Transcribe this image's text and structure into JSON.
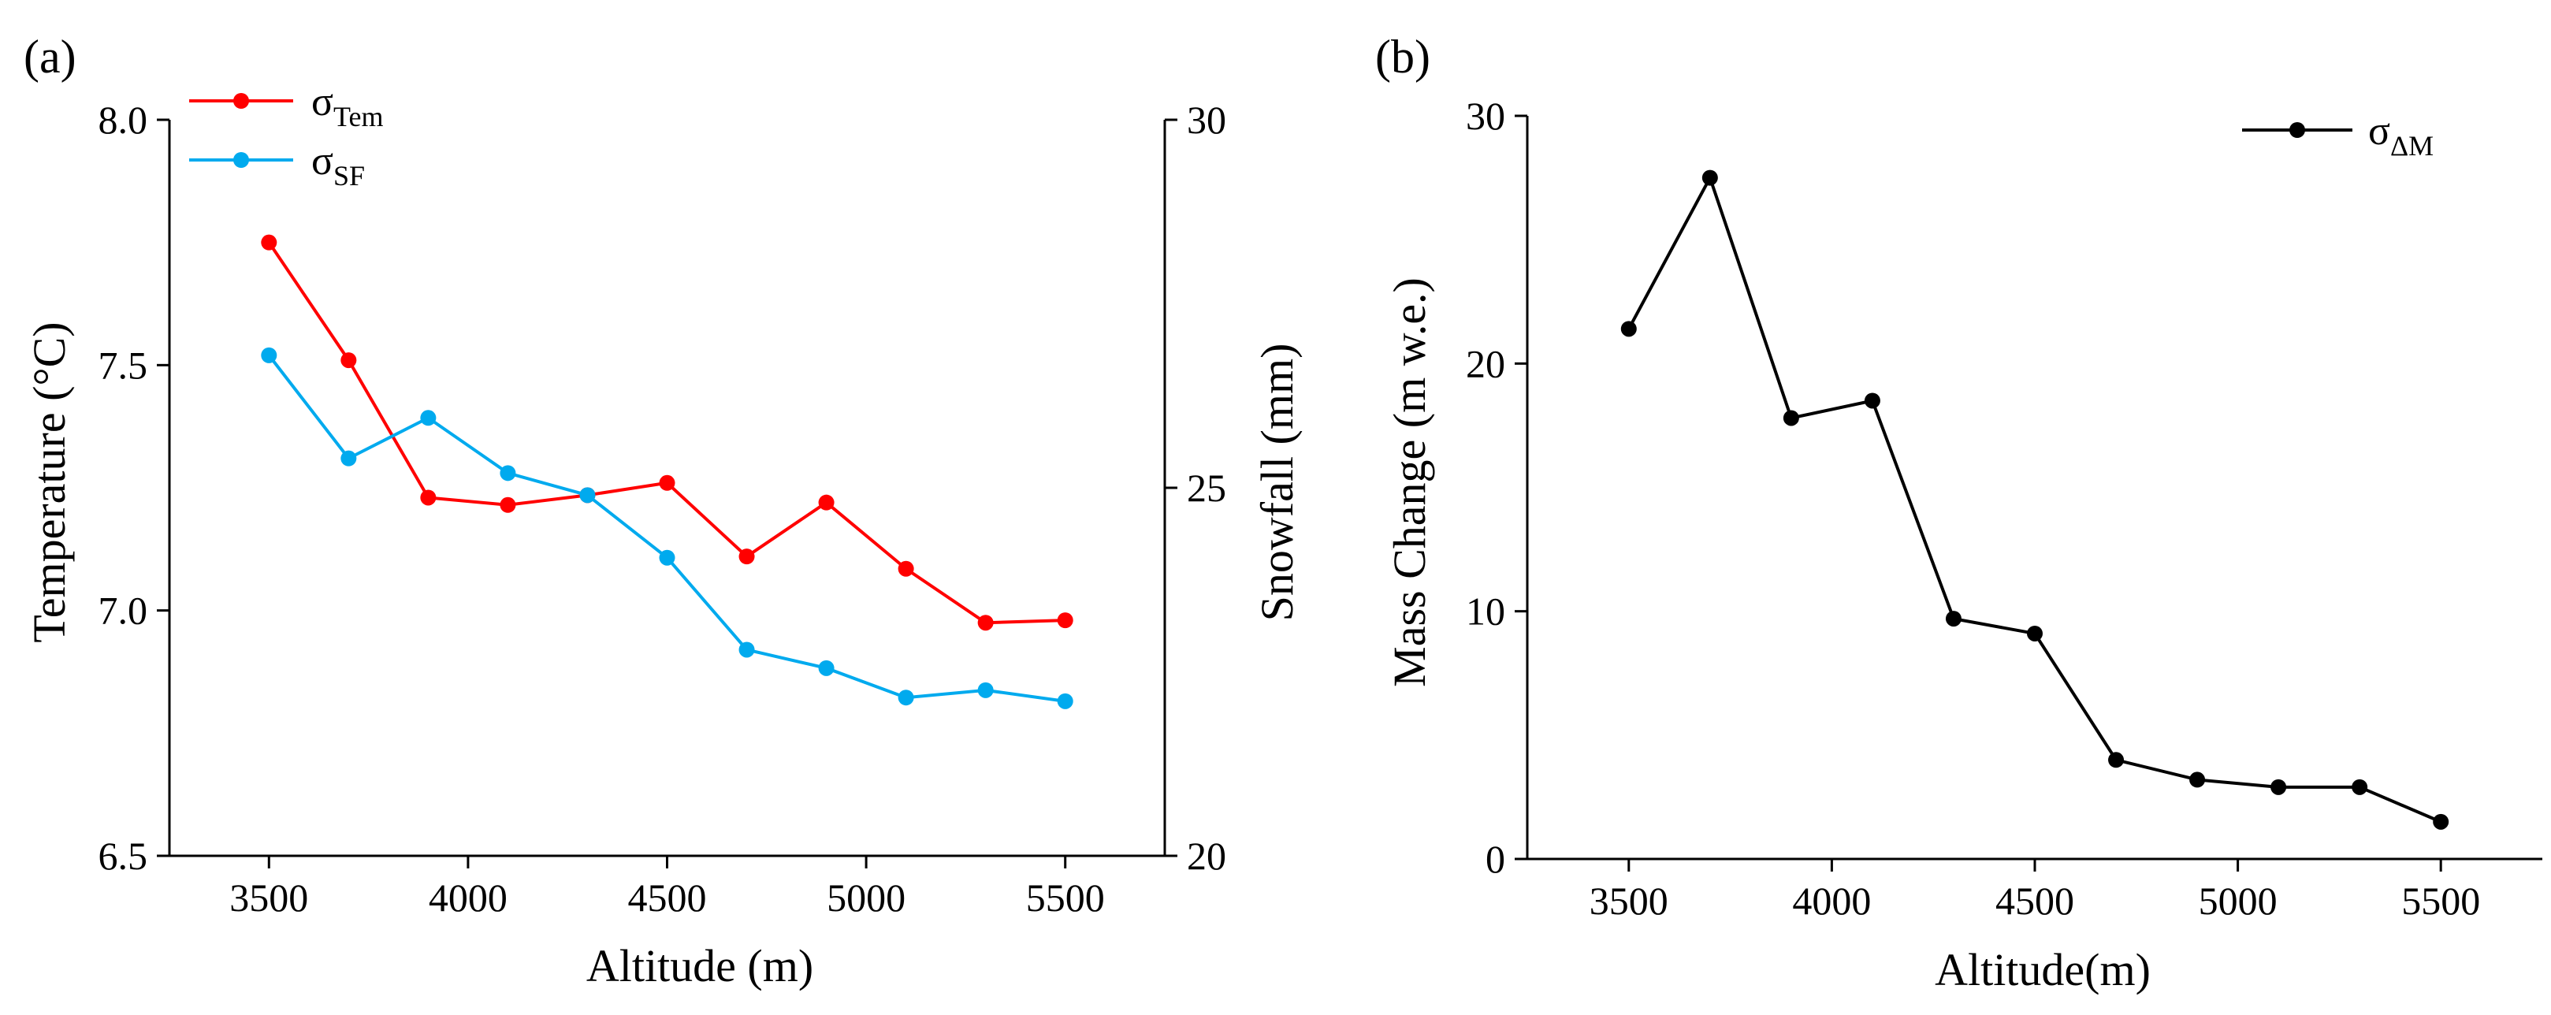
{
  "chart_data": [
    {
      "type": "line",
      "panel_label": "(a)",
      "xlabel": "Altitude (m)",
      "ylabel": "Temperature (°C)",
      "y2label": "Snowfall (mm)",
      "xlim": [
        3250,
        5750
      ],
      "ylim": [
        6.5,
        8.0
      ],
      "y2lim": [
        20,
        30
      ],
      "xticks": [
        3500,
        4000,
        4500,
        5000,
        5500
      ],
      "yticks": [
        "6.5",
        "7.0",
        "7.5",
        "8.0"
      ],
      "y2ticks": [
        20,
        25,
        30
      ],
      "x": [
        3500,
        3700,
        3900,
        4100,
        4300,
        4500,
        4700,
        4900,
        5100,
        5300,
        5500
      ],
      "legend_position": "top-left",
      "series": [
        {
          "name": "σ",
          "name_sub": "Tem",
          "axis": "left",
          "color": "#ff0000",
          "values": [
            7.75,
            7.51,
            7.23,
            7.215,
            7.235,
            7.26,
            7.11,
            7.22,
            7.085,
            6.975,
            6.98
          ]
        },
        {
          "name": "σ",
          "name_sub": "SF",
          "axis": "right",
          "color": "#00aaee",
          "values": [
            26.8,
            25.4,
            25.95,
            25.2,
            24.9,
            24.05,
            22.8,
            22.55,
            22.15,
            22.25,
            22.1
          ]
        }
      ]
    },
    {
      "type": "line",
      "panel_label": "(b)",
      "xlabel": "Altitude(m)",
      "ylabel": "Mass Change (m w.e.)",
      "xlim": [
        3250,
        5750
      ],
      "ylim": [
        0,
        30
      ],
      "xticks": [
        3500,
        4000,
        4500,
        5000,
        5500
      ],
      "yticks": [
        0,
        10,
        20,
        30
      ],
      "x": [
        3500,
        3700,
        3900,
        4100,
        4300,
        4500,
        4700,
        4900,
        5100,
        5300,
        5500
      ],
      "legend_position": "top-right",
      "series": [
        {
          "name": "σ",
          "name_sub": "ΔM",
          "axis": "left",
          "color": "#000000",
          "values": [
            21.4,
            27.5,
            17.8,
            18.5,
            9.7,
            9.1,
            4.0,
            3.2,
            2.9,
            2.9,
            1.5
          ]
        }
      ]
    }
  ]
}
